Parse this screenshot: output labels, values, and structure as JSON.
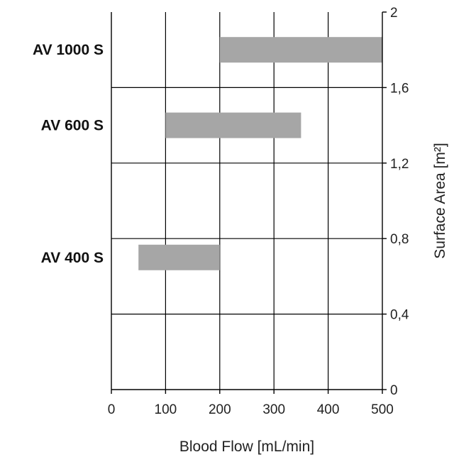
{
  "chart_data": {
    "type": "bar",
    "orientation": "floating-horizontal-range",
    "xlabel": "Blood Flow [mL/min]",
    "ylabel": "Surface Area [m²]",
    "xlim": [
      0,
      500
    ],
    "ylim": [
      0,
      2
    ],
    "x_ticks": [
      "0",
      "100",
      "200",
      "300",
      "400",
      "500"
    ],
    "y_ticks": [
      "0",
      "0,4",
      "0,8",
      "1,2",
      "1,6",
      "2"
    ],
    "grid": true,
    "y_axis_side": "right",
    "bar_color": "#a6a6a6",
    "series": [
      {
        "label": "AV 1000 S",
        "x_start": 200,
        "x_end": 500,
        "y": 1.8
      },
      {
        "label": "AV 600 S",
        "x_start": 100,
        "x_end": 350,
        "y": 1.4
      },
      {
        "label": "AV 400 S",
        "x_start": 50,
        "x_end": 200,
        "y": 0.7
      }
    ]
  }
}
